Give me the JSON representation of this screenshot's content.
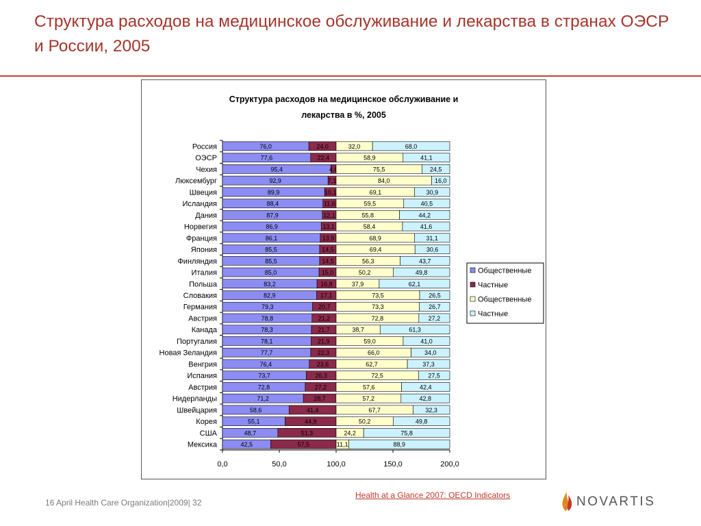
{
  "slide": {
    "title": "Структура расходов на медицинское обслуживание и лекарства в странах ОЭСР и России, 2005",
    "source": "Health at a Glance 2007: OECD Indicators",
    "footer": "16 April Health Care Organization|2009| 32",
    "logo": "NOVARTIS"
  },
  "colors": {
    "title": "#a4352a",
    "series1": "#8c8cf2",
    "series2": "#8b2a4b",
    "series3": "#ffffcc",
    "series4": "#ccf2ff"
  },
  "chart_data": {
    "type": "bar",
    "orientation": "horizontal",
    "stacked": true,
    "title": "Структура расходов на медицинское обслуживание и лекарства в %, 2005",
    "xlim": [
      0,
      200
    ],
    "xticks": [
      "0,0",
      "50,0",
      "100,0",
      "150,0",
      "200,0"
    ],
    "legend_position": "right",
    "categories": [
      "Россия",
      "ОЭСР",
      "Чехия",
      "Люксембург",
      "Швеция",
      "Исландия",
      "Дания",
      "Норвегия",
      "Франция",
      "Япония",
      "Финляндия",
      "Италия",
      "Польша",
      "Словакия",
      "Германия",
      "Австрия",
      "Канада",
      "Португалия",
      "Новая Зеландия",
      "Венгрия",
      "Испания",
      "Австрия",
      "Нидерланды",
      "Швейцария",
      "Корея",
      "США",
      "Мексика"
    ],
    "series": [
      {
        "name": "Общественные",
        "values": [
          76.0,
          77.6,
          95.4,
          92.9,
          89.9,
          88.4,
          87.9,
          86.9,
          86.1,
          85.5,
          85.5,
          85.0,
          83.2,
          82.9,
          79.3,
          78.8,
          78.3,
          78.1,
          77.7,
          76.4,
          73.7,
          72.8,
          71.2,
          58.6,
          55.1,
          48.7,
          42.5
        ],
        "labels": [
          "76,0",
          "77,6",
          "95,4",
          "92,9",
          "89,9",
          "88,4",
          "87,9",
          "86,9",
          "86,1",
          "85,5",
          "85,5",
          "85,0",
          "83,2",
          "82,9",
          "79,3",
          "78,8",
          "78,3",
          "78,1",
          "77,7",
          "76,4",
          "73,7",
          "72,8",
          "71,2",
          "58,6",
          "55,1",
          "48,7",
          "42,5"
        ]
      },
      {
        "name": "Частные",
        "values": [
          24.0,
          22.4,
          4.6,
          7.1,
          10.1,
          11.6,
          12.1,
          13.1,
          13.9,
          14.5,
          14.5,
          15.0,
          16.8,
          17.1,
          20.7,
          21.2,
          21.7,
          21.9,
          22.3,
          23.6,
          26.3,
          27.2,
          28.7,
          41.4,
          44.9,
          51.3,
          57.5
        ],
        "labels": [
          "24,0",
          "22,4",
          "4,6",
          "7,1",
          "10,1",
          "11,6",
          "12,1",
          "13,1",
          "13,9",
          "14,5",
          "14,5",
          "15,0",
          "16,8",
          "17,1",
          "20,7",
          "21,2",
          "21,7",
          "21,9",
          "22,3",
          "23,6",
          "26,3",
          "27,2",
          "28,7",
          "41,4",
          "44,9",
          "51,3",
          "57,5"
        ]
      },
      {
        "name": "Общественные",
        "values": [
          32.0,
          58.9,
          75.5,
          84.0,
          69.1,
          59.5,
          55.8,
          58.4,
          68.9,
          69.4,
          56.3,
          50.2,
          37.9,
          73.5,
          73.3,
          72.8,
          38.7,
          59.0,
          66.0,
          62.7,
          72.5,
          57.6,
          57.2,
          67.7,
          50.2,
          24.2,
          11.1
        ],
        "labels": [
          "32,0",
          "58,9",
          "75,5",
          "84,0",
          "69,1",
          "59,5",
          "55,8",
          "58,4",
          "68,9",
          "69,4",
          "56,3",
          "50,2",
          "37,9",
          "73,5",
          "73,3",
          "72,8",
          "38,7",
          "59,0",
          "66,0",
          "62,7",
          "72,5",
          "57,6",
          "57,2",
          "67,7",
          "50,2",
          "24,2",
          "11,1"
        ]
      },
      {
        "name": "Частные",
        "values": [
          68.0,
          41.1,
          24.5,
          16.0,
          30.9,
          40.5,
          44.2,
          41.6,
          31.1,
          30.6,
          43.7,
          49.8,
          62.1,
          26.5,
          26.7,
          27.2,
          61.3,
          41.0,
          34.0,
          37.3,
          27.5,
          42.4,
          42.8,
          32.3,
          49.8,
          75.8,
          88.9
        ],
        "labels": [
          "68,0",
          "41,1",
          "24,5",
          "16,0",
          "30,9",
          "40,5",
          "44,2",
          "41,6",
          "31,1",
          "30,6",
          "43,7",
          "49,8",
          "62,1",
          "26,5",
          "26,7",
          "27,2",
          "61,3",
          "41,0",
          "34,0",
          "37,3",
          "27,5",
          "42,4",
          "42,8",
          "32,3",
          "49,8",
          "75,8",
          "88,9"
        ]
      }
    ]
  }
}
